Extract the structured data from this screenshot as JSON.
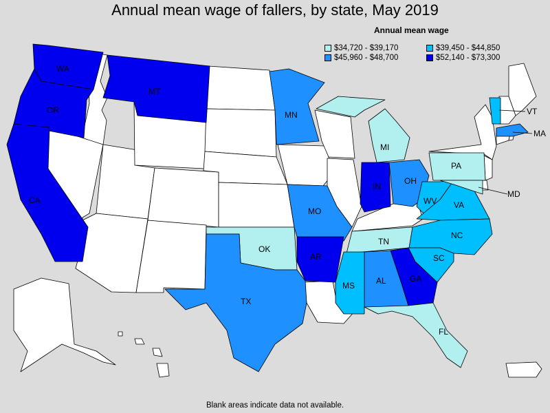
{
  "title": "Annual mean wage of fallers, by state, May 2019",
  "legend": {
    "title": "Annual mean wage",
    "bins": [
      {
        "label": "$34,720 - $39,170",
        "color": "#b2f0f0"
      },
      {
        "label": "$39,450 - $44,850",
        "color": "#00bfff"
      },
      {
        "label": "$45,960 - $48,700",
        "color": "#1e90ff"
      },
      {
        "label": "$52,140 - $73,300",
        "color": "#0000ee"
      }
    ]
  },
  "no_data_color": "#ffffff",
  "note": "Blank areas indicate data not available.",
  "states": {
    "WA": {
      "label": "WA",
      "bin": 3
    },
    "OR": {
      "label": "OR",
      "bin": 3
    },
    "CA": {
      "label": "CA",
      "bin": 3
    },
    "MT": {
      "label": "MT",
      "bin": 3
    },
    "IN": {
      "label": "IN",
      "bin": 3
    },
    "AR": {
      "label": "AR",
      "bin": 3
    },
    "GA": {
      "label": "GA",
      "bin": 3
    },
    "MN": {
      "label": "MN",
      "bin": 2
    },
    "MO": {
      "label": "MO",
      "bin": 2
    },
    "TX": {
      "label": "TX",
      "bin": 2
    },
    "OH": {
      "label": "OH",
      "bin": 2
    },
    "AL": {
      "label": "AL",
      "bin": 2
    },
    "MA": {
      "label": "MA",
      "bin": 2
    },
    "VT": {
      "label": "VT",
      "bin": 1
    },
    "WV": {
      "label": "WV",
      "bin": 1
    },
    "VA": {
      "label": "VA",
      "bin": 1
    },
    "NC": {
      "label": "NC",
      "bin": 1
    },
    "SC": {
      "label": "SC",
      "bin": 1
    },
    "MS": {
      "label": "MS",
      "bin": 1
    },
    "MI": {
      "label": "MI",
      "bin": 0
    },
    "PA": {
      "label": "PA",
      "bin": 0
    },
    "TN": {
      "label": "TN",
      "bin": 0
    },
    "OK": {
      "label": "OK",
      "bin": 0
    },
    "FL": {
      "label": "FL",
      "bin": 0
    },
    "MD": {
      "label": "MD",
      "bin": 0
    }
  }
}
